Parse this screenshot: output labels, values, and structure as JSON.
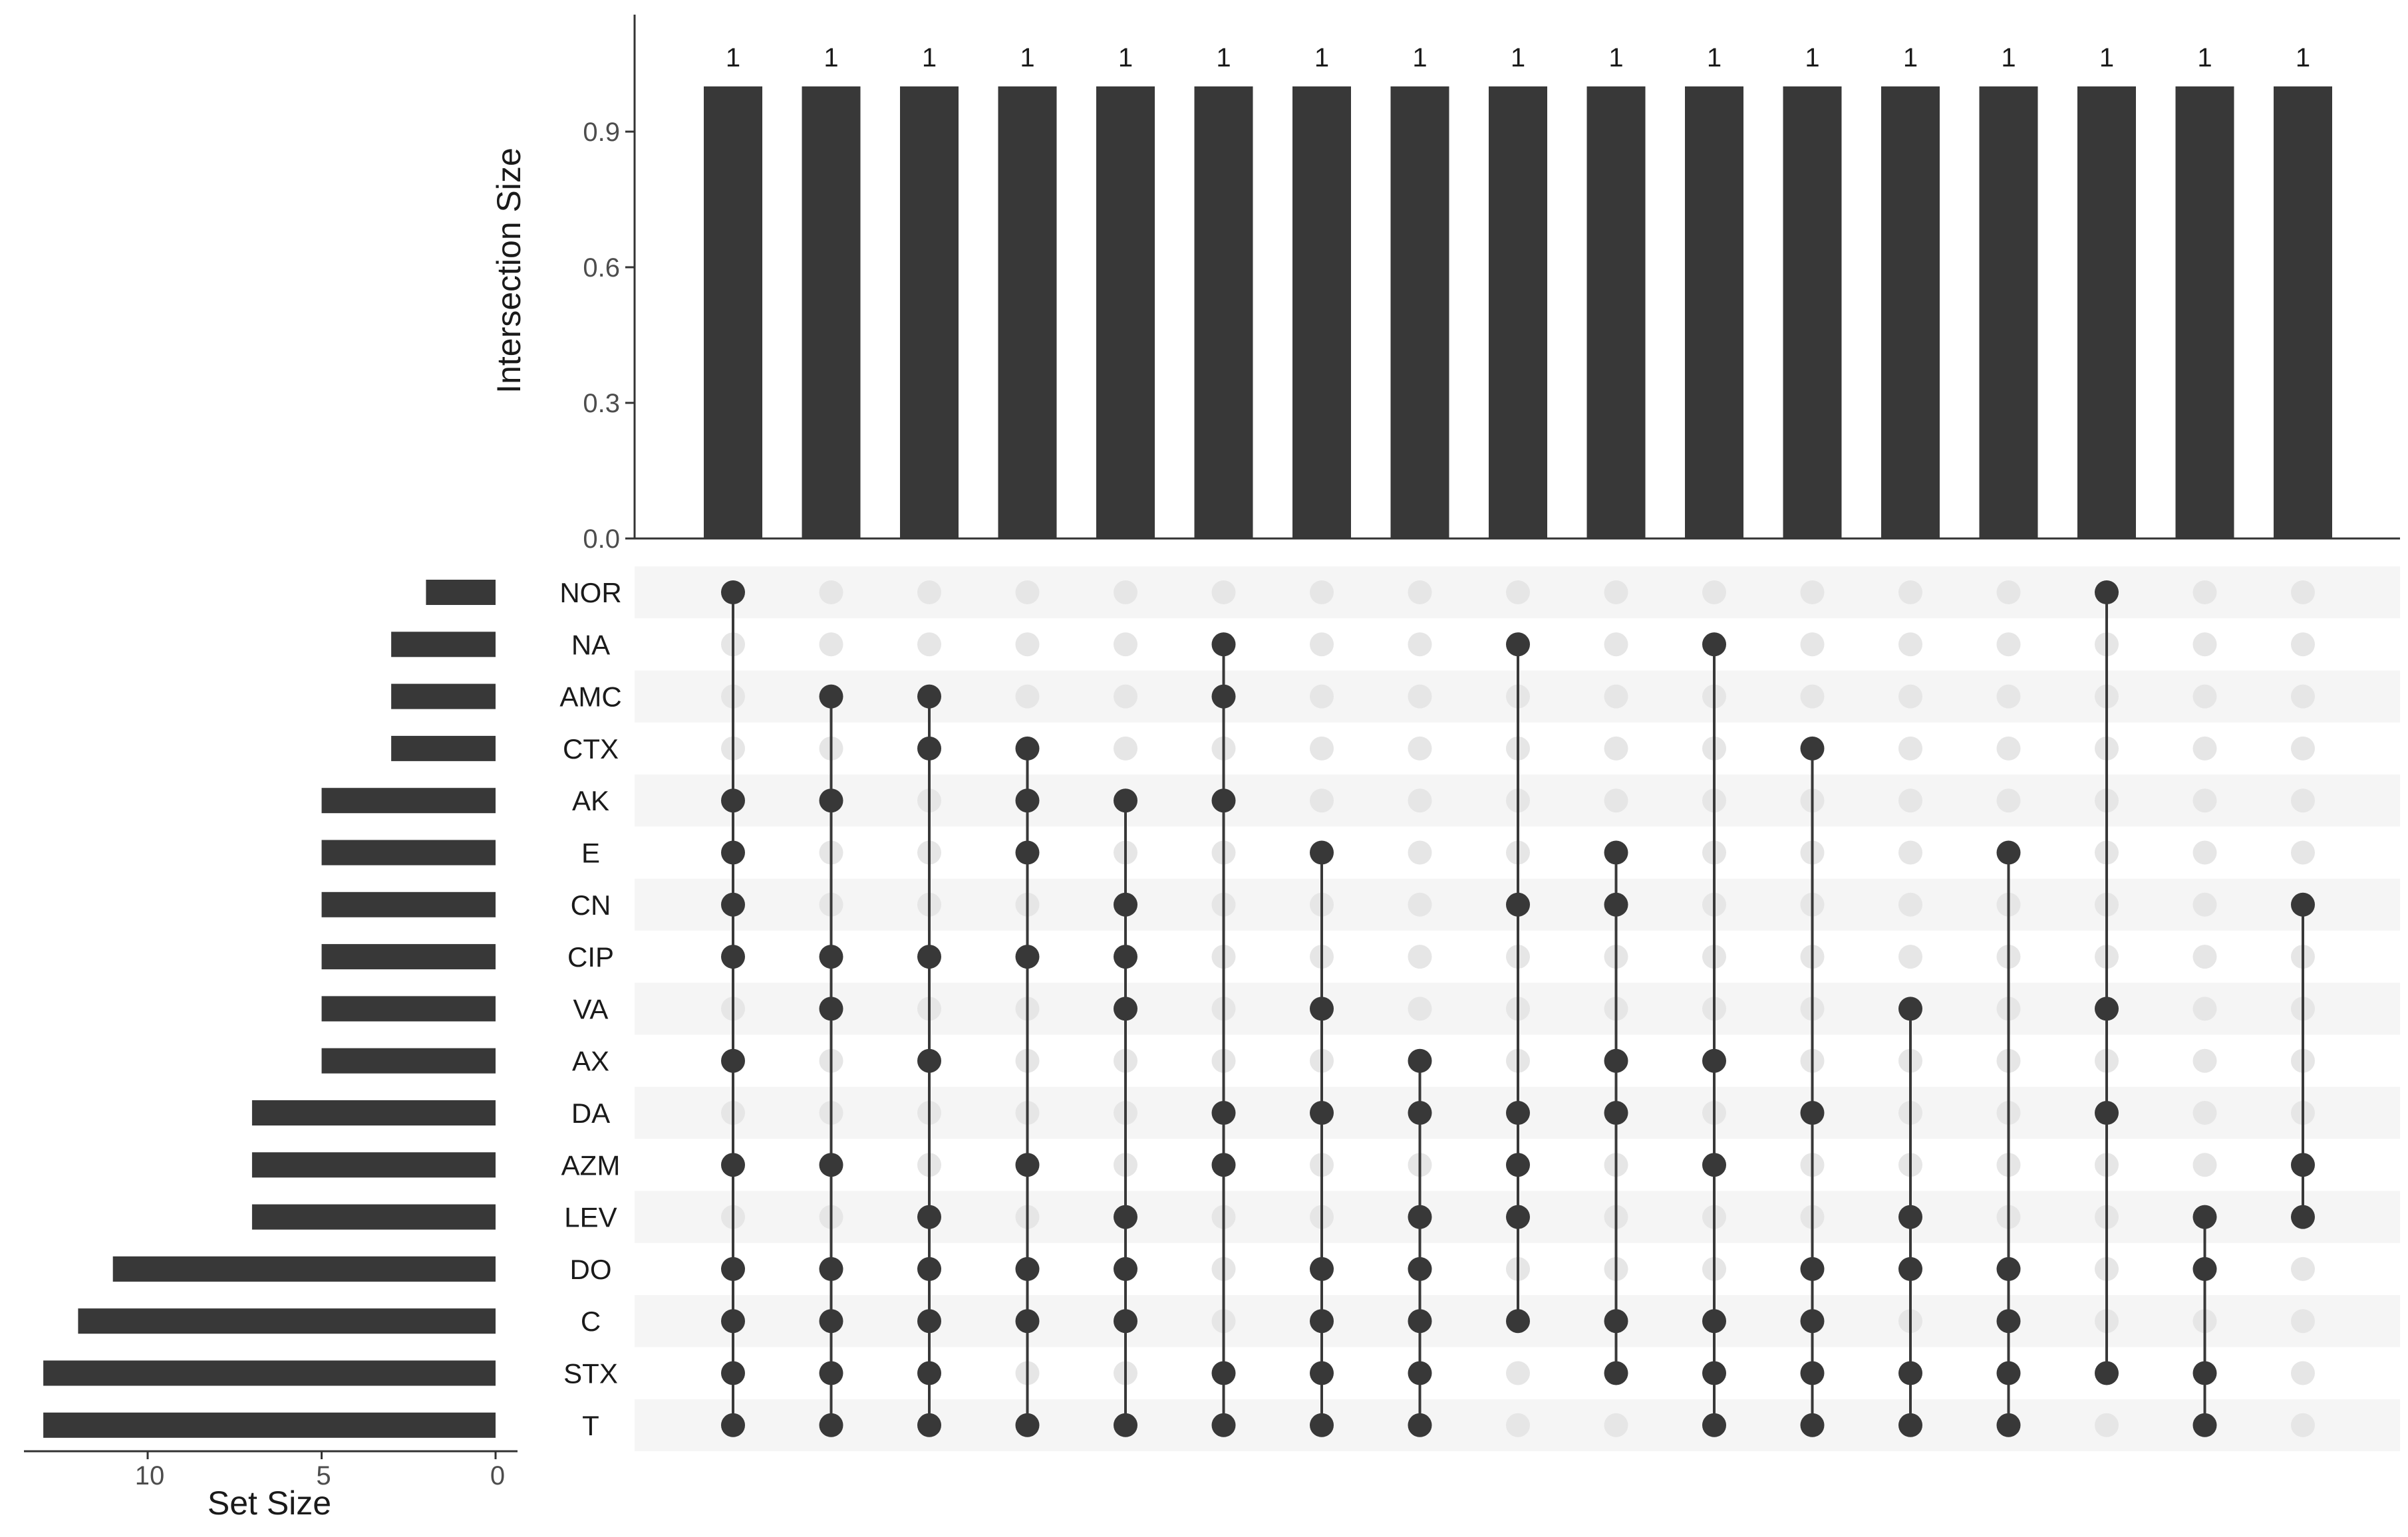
{
  "chart_data": {
    "type": "upset",
    "intersection_size": {
      "ylabel": "Intersection Size",
      "ylim": [
        0,
        1.1
      ],
      "yticks": [
        {
          "value": 0.0,
          "label": "0.0"
        },
        {
          "value": 0.3,
          "label": "0.3"
        },
        {
          "value": 0.6,
          "label": "0.6"
        },
        {
          "value": 0.9,
          "label": "0.9"
        }
      ],
      "values": [
        1,
        1,
        1,
        1,
        1,
        1,
        1,
        1,
        1,
        1,
        1,
        1,
        1,
        1,
        1,
        1,
        1
      ],
      "value_labels": [
        "1",
        "1",
        "1",
        "1",
        "1",
        "1",
        "1",
        "1",
        "1",
        "1",
        "1",
        "1",
        "1",
        "1",
        "1",
        "1",
        "1"
      ]
    },
    "sets": [
      "NOR",
      "NA",
      "AMC",
      "CTX",
      "AK",
      "E",
      "CN",
      "CIP",
      "VA",
      "AX",
      "DA",
      "AZM",
      "LEV",
      "DO",
      "C",
      "STX",
      "T"
    ],
    "set_size": {
      "xlabel": "Set Size",
      "xticks": [
        {
          "value": 10,
          "label": "10"
        },
        {
          "value": 5,
          "label": "5"
        },
        {
          "value": 0,
          "label": "0"
        }
      ],
      "values": [
        2,
        3,
        3,
        3,
        5,
        5,
        5,
        5,
        5,
        5,
        7,
        7,
        7,
        11,
        12,
        13,
        13
      ]
    },
    "intersections": [
      [
        "NOR",
        "AK",
        "E",
        "CN",
        "CIP",
        "AX",
        "AZM",
        "DO",
        "C",
        "STX",
        "T"
      ],
      [
        "AMC",
        "AK",
        "CIP",
        "VA",
        "AZM",
        "DO",
        "C",
        "STX",
        "T"
      ],
      [
        "AMC",
        "CTX",
        "CIP",
        "AX",
        "LEV",
        "DO",
        "C",
        "STX",
        "T"
      ],
      [
        "CTX",
        "AK",
        "E",
        "CIP",
        "AZM",
        "DO",
        "C",
        "T"
      ],
      [
        "AK",
        "CN",
        "CIP",
        "VA",
        "LEV",
        "DO",
        "C",
        "T"
      ],
      [
        "NA",
        "AMC",
        "AK",
        "DA",
        "AZM",
        "STX",
        "T"
      ],
      [
        "E",
        "VA",
        "DA",
        "DO",
        "C",
        "STX",
        "T"
      ],
      [
        "AX",
        "DA",
        "LEV",
        "DO",
        "C",
        "STX",
        "T"
      ],
      [
        "NA",
        "CN",
        "DA",
        "AZM",
        "LEV",
        "C"
      ],
      [
        "E",
        "CN",
        "AX",
        "DA",
        "C",
        "STX"
      ],
      [
        "NA",
        "AX",
        "AZM",
        "C",
        "STX",
        "T"
      ],
      [
        "CTX",
        "DA",
        "DO",
        "C",
        "STX",
        "T"
      ],
      [
        "VA",
        "LEV",
        "DO",
        "STX",
        "T"
      ],
      [
        "E",
        "DO",
        "C",
        "STX",
        "T"
      ],
      [
        "NOR",
        "VA",
        "DA",
        "STX"
      ],
      [
        "LEV",
        "DO",
        "STX",
        "T"
      ],
      [
        "CN",
        "AZM",
        "LEV"
      ]
    ],
    "colors": {
      "bar": "#383838",
      "dot_active": "#383838",
      "dot_inactive": "#e6e6e6",
      "stripe": "#f5f5f5",
      "axis": "#333333"
    },
    "grid": false
  }
}
